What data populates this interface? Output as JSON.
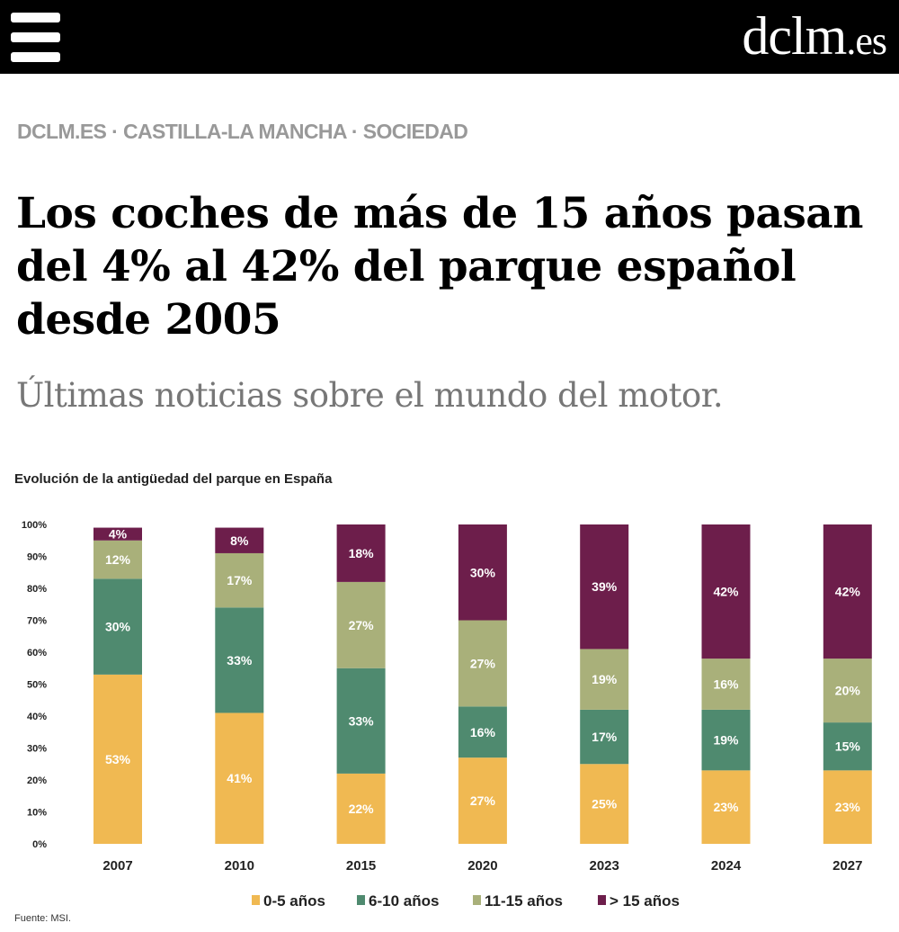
{
  "header": {
    "logo": "dclm",
    "logo_suffix": ".es",
    "menu_icon": "hamburger-icon"
  },
  "breadcrumb": [
    "DCLM.ES",
    "CASTILLA-LA MANCHA",
    "SOCIEDAD"
  ],
  "breadcrumb_separator": " · ",
  "article": {
    "title": "Los coches de más de 15 años pasan del 4% al 42% del parque español desde 2005",
    "subtitle": "Últimas noticias sobre el mundo del motor."
  },
  "chart_data": {
    "type": "bar",
    "stacked": true,
    "title": "Evolución de la antigüedad del parque en España",
    "source": "Fuente: MSI.",
    "categories": [
      "2007",
      "2010",
      "2015",
      "2020",
      "2023",
      "2024",
      "2027"
    ],
    "ylim": [
      0,
      100
    ],
    "yticks": [
      "0%",
      "10%",
      "20%",
      "30%",
      "40%",
      "50%",
      "60%",
      "70%",
      "80%",
      "90%",
      "100%"
    ],
    "legend_position": "bottom",
    "grid": false,
    "series": [
      {
        "name": "0-5 años",
        "color": "#f0b952",
        "values": [
          53,
          41,
          22,
          27,
          25,
          23,
          23
        ]
      },
      {
        "name": "6-10 años",
        "color": "#4f8a6f",
        "values": [
          30,
          33,
          33,
          16,
          17,
          19,
          15
        ]
      },
      {
        "name": "11-15 años",
        "color": "#a9b07a",
        "values": [
          12,
          17,
          27,
          27,
          19,
          16,
          20
        ]
      },
      {
        "name": "> 15 años",
        "color": "#6d1e4b",
        "values": [
          4,
          8,
          18,
          30,
          39,
          42,
          42
        ]
      }
    ]
  }
}
